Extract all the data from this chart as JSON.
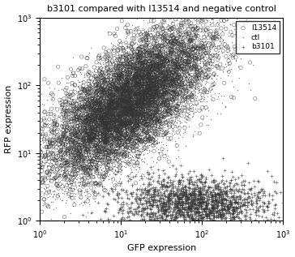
{
  "title": "b3101 compared with I13514 and negative control",
  "xlabel": "GFP expression",
  "ylabel": "RFP expression",
  "xlim": [
    1,
    1000
  ],
  "ylim": [
    1,
    1000
  ],
  "legend_labels": [
    "I13514",
    "ctl",
    "b3101"
  ],
  "legend_markers": [
    "o",
    "x",
    "+"
  ],
  "seed": 42,
  "n_I13514": 5000,
  "n_ctl": 8000,
  "n_b3101": 2000,
  "marker_color": "#333333",
  "title_fontsize": 8,
  "label_fontsize": 8,
  "tick_fontsize": 7
}
